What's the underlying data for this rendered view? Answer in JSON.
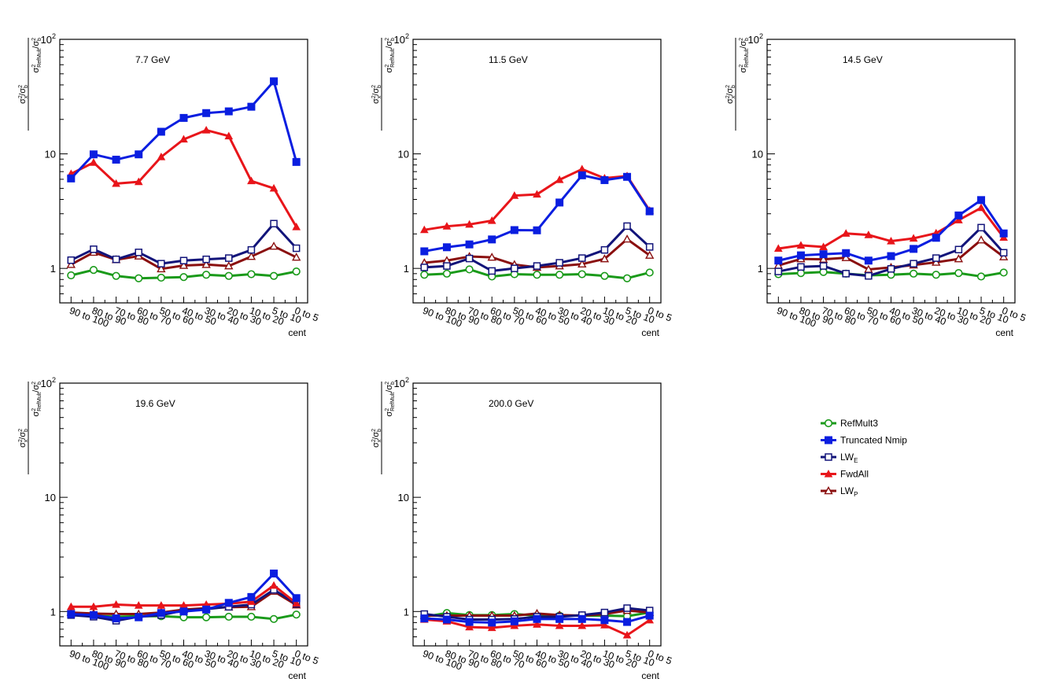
{
  "colors": {
    "RefMult3": "#1a9a1a",
    "Truncated Nmip": "#0a1ee0",
    "LW_E": "#12147a",
    "FwdAll": "#e8151a",
    "LW_P": "#8a0f0f"
  },
  "legend": {
    "placement": "right, lower row",
    "items": [
      {
        "key": "RefMult3",
        "label": "RefMult3",
        "sub": "",
        "marker": "open-circle"
      },
      {
        "key": "Truncated Nmip",
        "label": "Truncated Nmip",
        "sub": "",
        "marker": "filled-square"
      },
      {
        "key": "LW_E",
        "label": "LW",
        "sub": "E",
        "marker": "open-square"
      },
      {
        "key": "FwdAll",
        "label": "FwdAll",
        "sub": "",
        "marker": "filled-triangle"
      },
      {
        "key": "LW_P",
        "label": "LW",
        "sub": "P",
        "marker": "open-triangle"
      }
    ]
  },
  "chart_data": [
    {
      "type": "line",
      "title": "7.7 GeV",
      "xlabel": "cent",
      "ylabel": "σ²x/σ²b / σ²RefMult/σ²b",
      "yscale": "log",
      "ylim": [
        0.5,
        100
      ],
      "yticks": [
        {
          "v": 1,
          "label": "1"
        },
        {
          "v": 10,
          "label": "10"
        },
        {
          "v": 100,
          "label": "10²"
        }
      ],
      "categories": [
        "90 to 100",
        "80 to 90",
        "70 to 80",
        "60 to 70",
        "50 to 60",
        "40 to 50",
        "30 to 40",
        "20 to 30",
        "10 to 20",
        "5 to 10",
        "0 to 5"
      ],
      "series": [
        {
          "name": "RefMult3",
          "values": [
            0.87,
            0.97,
            0.86,
            0.82,
            0.83,
            0.84,
            0.88,
            0.86,
            0.89,
            0.86,
            0.94
          ]
        },
        {
          "name": "Truncated Nmip",
          "values": [
            6.1,
            9.9,
            8.9,
            9.9,
            15.6,
            20.6,
            22.7,
            23.5,
            25.8,
            43.0,
            8.5
          ]
        },
        {
          "name": "LW_E",
          "values": [
            1.18,
            1.47,
            1.2,
            1.38,
            1.1,
            1.17,
            1.2,
            1.23,
            1.45,
            2.46,
            1.5
          ]
        },
        {
          "name": "FwdAll",
          "values": [
            6.7,
            8.4,
            5.5,
            5.7,
            9.4,
            13.4,
            16.1,
            14.3,
            5.8,
            5.0,
            2.3
          ]
        },
        {
          "name": "LW_P",
          "values": [
            1.08,
            1.38,
            1.19,
            1.28,
            0.99,
            1.06,
            1.08,
            1.05,
            1.27,
            1.56,
            1.25
          ]
        }
      ]
    },
    {
      "type": "line",
      "title": "11.5 GeV",
      "xlabel": "cent",
      "ylabel": "σ²x/σ²b / σ²RefMult/σ²b",
      "yscale": "log",
      "ylim": [
        0.5,
        100
      ],
      "yticks": [
        {
          "v": 1,
          "label": "1"
        },
        {
          "v": 10,
          "label": "10"
        },
        {
          "v": 100,
          "label": "10²"
        }
      ],
      "categories": [
        "90 to 100",
        "80 to 90",
        "70 to 80",
        "60 to 70",
        "50 to 60",
        "40 to 50",
        "30 to 40",
        "20 to 30",
        "10 to 20",
        "5 to 10",
        "0 to 5"
      ],
      "series": [
        {
          "name": "RefMult3",
          "values": [
            0.88,
            0.9,
            0.98,
            0.85,
            0.89,
            0.88,
            0.88,
            0.89,
            0.86,
            0.82,
            0.92
          ]
        },
        {
          "name": "Truncated Nmip",
          "values": [
            1.41,
            1.53,
            1.62,
            1.79,
            2.16,
            2.15,
            3.76,
            6.5,
            5.9,
            6.3,
            3.15
          ]
        },
        {
          "name": "LW_E",
          "values": [
            1.02,
            1.05,
            1.22,
            0.95,
            1.0,
            1.05,
            1.12,
            1.23,
            1.45,
            2.34,
            1.54
          ]
        },
        {
          "name": "FwdAll",
          "values": [
            2.17,
            2.33,
            2.42,
            2.61,
            4.32,
            4.43,
            5.94,
            7.35,
            6.13,
            6.41,
            3.2
          ]
        },
        {
          "name": "LW_P",
          "values": [
            1.12,
            1.17,
            1.27,
            1.25,
            1.08,
            1.02,
            1.05,
            1.09,
            1.21,
            1.8,
            1.3
          ]
        }
      ]
    },
    {
      "type": "line",
      "title": "14.5 GeV",
      "xlabel": "cent",
      "ylabel": "σ²x/σ²b / σ²RefMult/σ²b",
      "yscale": "log",
      "ylim": [
        0.5,
        100
      ],
      "yticks": [
        {
          "v": 1,
          "label": "1"
        },
        {
          "v": 10,
          "label": "10"
        },
        {
          "v": 100,
          "label": "10²"
        }
      ],
      "categories": [
        "90 to 100",
        "80 to 90",
        "70 to 80",
        "60 to 70",
        "50 to 60",
        "40 to 50",
        "30 to 40",
        "20 to 30",
        "10 to 20",
        "5 to 10",
        "0 to 5"
      ],
      "series": [
        {
          "name": "RefMult3",
          "values": [
            0.89,
            0.91,
            0.93,
            0.9,
            0.87,
            0.88,
            0.9,
            0.88,
            0.91,
            0.85,
            0.92
          ]
        },
        {
          "name": "Truncated Nmip",
          "values": [
            1.17,
            1.3,
            1.33,
            1.36,
            1.17,
            1.28,
            1.48,
            1.85,
            2.9,
            3.95,
            2.02
          ]
        },
        {
          "name": "LW_E",
          "values": [
            0.94,
            1.03,
            1.05,
            0.9,
            0.86,
            0.99,
            1.1,
            1.23,
            1.46,
            2.27,
            1.37
          ]
        },
        {
          "name": "FwdAll",
          "values": [
            1.49,
            1.59,
            1.54,
            2.02,
            1.96,
            1.73,
            1.83,
            2.03,
            2.64,
            3.38,
            1.86
          ]
        },
        {
          "name": "LW_P",
          "values": [
            1.06,
            1.21,
            1.2,
            1.24,
            0.98,
            1.02,
            1.07,
            1.13,
            1.21,
            1.77,
            1.26
          ]
        }
      ]
    },
    {
      "type": "line",
      "title": "19.6 GeV",
      "xlabel": "cent",
      "ylabel": "σ²x/σ²b / σ²RefMult/σ²b",
      "yscale": "log",
      "ylim": [
        0.5,
        100
      ],
      "yticks": [
        {
          "v": 1,
          "label": "1"
        },
        {
          "v": 10,
          "label": "10"
        },
        {
          "v": 100,
          "label": "10²"
        }
      ],
      "categories": [
        "90 to 100",
        "80 to 90",
        "70 to 80",
        "60 to 70",
        "50 to 60",
        "40 to 50",
        "30 to 40",
        "20 to 30",
        "10 to 20",
        "5 to 10",
        "0 to 5"
      ],
      "series": [
        {
          "name": "RefMult3",
          "values": [
            0.95,
            0.92,
            0.9,
            0.91,
            0.91,
            0.89,
            0.89,
            0.9,
            0.9,
            0.86,
            0.94
          ]
        },
        {
          "name": "Truncated Nmip",
          "values": [
            0.95,
            0.93,
            0.87,
            0.89,
            0.97,
            1.0,
            1.04,
            1.19,
            1.34,
            2.15,
            1.31
          ]
        },
        {
          "name": "LW_E",
          "values": [
            0.93,
            0.9,
            0.83,
            0.9,
            0.93,
            1.02,
            1.05,
            1.1,
            1.15,
            1.55,
            1.17
          ]
        },
        {
          "name": "FwdAll",
          "values": [
            1.1,
            1.1,
            1.15,
            1.13,
            1.13,
            1.13,
            1.15,
            1.17,
            1.22,
            1.69,
            1.18
          ]
        },
        {
          "name": "LW_P",
          "values": [
            0.98,
            0.96,
            0.95,
            0.95,
            0.98,
            1.04,
            1.07,
            1.09,
            1.1,
            1.5,
            1.14
          ]
        }
      ]
    },
    {
      "type": "line",
      "title": "200.0 GeV",
      "xlabel": "cent",
      "ylabel": "σ²x/σ²b / σ²RefMult/σ²b",
      "yscale": "log",
      "ylim": [
        0.5,
        100
      ],
      "yticks": [
        {
          "v": 1,
          "label": "1"
        },
        {
          "v": 10,
          "label": "10"
        },
        {
          "v": 100,
          "label": "10²"
        }
      ],
      "categories": [
        "90 to 100",
        "80 to 90",
        "70 to 80",
        "60 to 70",
        "50 to 60",
        "40 to 50",
        "30 to 40",
        "20 to 30",
        "10 to 20",
        "5 to 10",
        "0 to 5"
      ],
      "series": [
        {
          "name": "RefMult3",
          "values": [
            0.9,
            0.97,
            0.93,
            0.93,
            0.95,
            0.92,
            0.92,
            0.92,
            0.92,
            0.91,
            0.98
          ]
        },
        {
          "name": "Truncated Nmip",
          "values": [
            0.87,
            0.85,
            0.81,
            0.8,
            0.82,
            0.86,
            0.86,
            0.86,
            0.84,
            0.81,
            0.92
          ]
        },
        {
          "name": "LW_E",
          "values": [
            0.95,
            0.9,
            0.85,
            0.85,
            0.86,
            0.9,
            0.9,
            0.93,
            0.98,
            1.07,
            1.02
          ]
        },
        {
          "name": "FwdAll",
          "values": [
            0.85,
            0.82,
            0.73,
            0.72,
            0.75,
            0.77,
            0.75,
            0.75,
            0.76,
            0.62,
            0.84
          ]
        },
        {
          "name": "LW_P",
          "values": [
            0.92,
            0.92,
            0.92,
            0.92,
            0.92,
            0.96,
            0.93,
            0.92,
            0.95,
            1.02,
            0.98
          ]
        }
      ]
    }
  ]
}
